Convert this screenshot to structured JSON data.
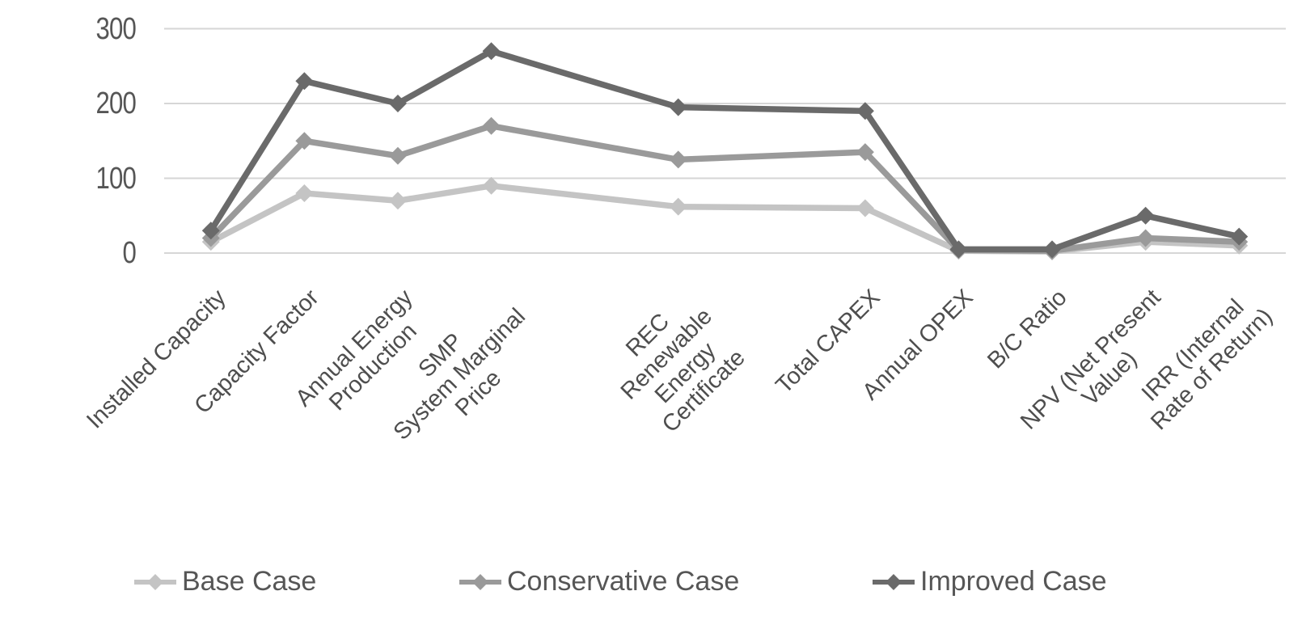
{
  "chart_data": {
    "type": "line",
    "title": "",
    "xlabel": "",
    "ylabel": "",
    "ylim": [
      0,
      300
    ],
    "yticks": [
      0,
      100,
      200,
      300
    ],
    "grid": true,
    "legend_position": "bottom",
    "total_slots": 12,
    "blank_slots": [
      4,
      6
    ],
    "categories": [
      {
        "slot": 0,
        "label": "Installed Capacity",
        "lines": [
          "Installed Capacity"
        ]
      },
      {
        "slot": 1,
        "label": "Capacity Factor",
        "lines": [
          "Capacity Factor"
        ]
      },
      {
        "slot": 2,
        "label": "Annual Energy Production",
        "lines": [
          "Annual Energy",
          "Production"
        ]
      },
      {
        "slot": 3,
        "label": "SMP System Marginal Price",
        "lines": [
          "SMP",
          "System Marginal",
          "Price"
        ]
      },
      {
        "slot": 5,
        "label": "REC Renewable Energy Certificate",
        "lines": [
          "REC",
          "Renewable",
          "Energy",
          "Certificate"
        ]
      },
      {
        "slot": 7,
        "label": "Total CAPEX",
        "lines": [
          "Total CAPEX"
        ]
      },
      {
        "slot": 8,
        "label": "Annual OPEX",
        "lines": [
          "Annual OPEX"
        ]
      },
      {
        "slot": 9,
        "label": "B/C Ratio",
        "lines": [
          "B/C Ratio"
        ]
      },
      {
        "slot": 10,
        "label": "NPV (Net Present Value)",
        "lines": [
          "NPV (Net Present",
          "Value)"
        ]
      },
      {
        "slot": 11,
        "label": "IRR (Internal Rate of Return)",
        "lines": [
          "IRR (Internal",
          "Rate of Return)"
        ]
      }
    ],
    "series": [
      {
        "name": "Base Case",
        "color": "#c4c4c4",
        "values": [
          15,
          80,
          70,
          90,
          62,
          60,
          3,
          2,
          15,
          10
        ]
      },
      {
        "name": "Conservative Case",
        "color": "#9a9a9a",
        "values": [
          20,
          150,
          130,
          170,
          125,
          135,
          4,
          3,
          20,
          15
        ]
      },
      {
        "name": "Improved Case",
        "color": "#6a6a6a",
        "values": [
          30,
          230,
          200,
          270,
          195,
          190,
          5,
          5,
          50,
          22
        ]
      }
    ]
  },
  "colors": {
    "gridline": "#d6d6d6",
    "axis_text": "#565656",
    "x_label_text": "#4e4e4e",
    "background": "#ffffff"
  },
  "legend": {
    "items": [
      "Base Case",
      "Conservative Case",
      "Improved Case"
    ]
  }
}
